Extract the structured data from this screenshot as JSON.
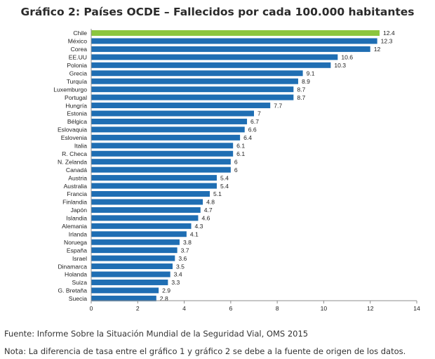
{
  "chart_data": {
    "type": "bar",
    "orientation": "horizontal",
    "title": "Gráfico 2: Países OCDE – Fallecidos por cada 100.000 habitantes",
    "categories": [
      "Chile",
      "México",
      "Corea",
      "EE.UU",
      "Polonia",
      "Grecia",
      "Turquía",
      "Luxemburgo",
      "Portugal",
      "Hungría",
      "Estonia",
      "Bélgica",
      "Eslovaquia",
      "Eslovenia",
      "Italia",
      "R. Checa",
      "N. Zelanda",
      "Canadá",
      "Austria",
      "Australia",
      "Francia",
      "Finlandia",
      "Japón",
      "Islandia",
      "Alemania",
      "Irlanda",
      "Noruega",
      "España",
      "Israel",
      "Dinamarca",
      "Holanda",
      "Suiza",
      "G. Bretaña",
      "Suecia"
    ],
    "values": [
      12.4,
      12.3,
      12,
      10.6,
      10.3,
      9.1,
      8.9,
      8.7,
      8.7,
      7.7,
      7,
      6.7,
      6.6,
      6.4,
      6.1,
      6.1,
      6,
      6,
      5.4,
      5.4,
      5.1,
      4.8,
      4.7,
      4.6,
      4.3,
      4.1,
      3.8,
      3.7,
      3.6,
      3.5,
      3.4,
      3.3,
      2.9,
      2.8
    ],
    "value_labels": [
      "12.4",
      "12.3",
      "12",
      "10.6",
      "10.3",
      "9.1",
      "8.9",
      "8.7",
      "8.7",
      "7.7",
      "7",
      "6.7",
      "6.6",
      "6.4",
      "6.1",
      "6.1",
      "6",
      "6",
      "5.4",
      "5.4",
      "5.1",
      "4.8",
      "4.7",
      "4.6",
      "4.3",
      "4.1",
      "3.8",
      "3.7",
      "3.6",
      "3.5",
      "3.4",
      "3.3",
      "2.9",
      "2.8"
    ],
    "xlim": [
      0,
      14
    ],
    "xticks": [
      "0",
      "2",
      "4",
      "6",
      "8",
      "10",
      "12",
      "14"
    ],
    "grid": false,
    "legend": "none",
    "colors": {
      "bar": "#1f6eb3",
      "highlight": "#8cc63f",
      "axis": "#8c8c8c"
    },
    "highlight_index": 0
  },
  "footer": {
    "source": "Fuente: Informe Sobre la Situación Mundial de la Seguridad Vial, OMS 2015",
    "note": "Nota: La diferencia de tasa entre el gráfico 1 y gráfico 2 se debe a la fuente de origen de los datos."
  }
}
